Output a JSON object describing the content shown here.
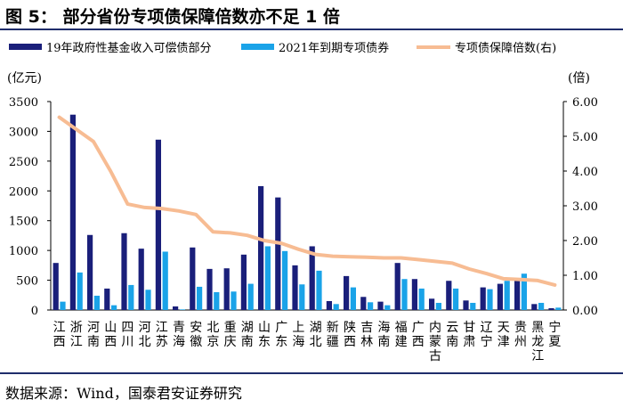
{
  "figure": {
    "title": "图 5： 部分省份专项债保障倍数亦不足 1 倍",
    "source": "数据来源：Wind，国泰君安证券研究"
  },
  "chart_data": {
    "type": "bar",
    "y_left_unit": "(亿元)",
    "y_right_unit": "(倍)",
    "ylim": [
      0,
      3500
    ],
    "yticks": [
      0,
      500,
      1000,
      1500,
      2000,
      2500,
      3000,
      3500
    ],
    "y2lim": [
      0,
      6
    ],
    "y2ticks": [
      "0.00",
      "1.00",
      "2.00",
      "3.00",
      "4.00",
      "5.00",
      "6.00"
    ],
    "categories": [
      "江西",
      "浙江",
      "河南",
      "山西",
      "四川",
      "河北",
      "江苏",
      "青海",
      "安徽",
      "北京",
      "重庆",
      "湖南",
      "山东",
      "广东",
      "上海",
      "湖北",
      "新疆",
      "陕西",
      "吉林",
      "海南",
      "福建",
      "广西",
      "内蒙古",
      "云南",
      "甘肃",
      "辽宁",
      "天津",
      "贵州",
      "黑龙江",
      "宁夏"
    ],
    "series": [
      {
        "name": "19年政府性基金收入可偿债部分",
        "type": "bar",
        "color": "#1a1f7a",
        "axis": "left",
        "values": [
          790,
          3280,
          1260,
          360,
          1290,
          1030,
          2860,
          60,
          1050,
          690,
          700,
          930,
          2080,
          1890,
          750,
          1070,
          150,
          570,
          220,
          140,
          790,
          520,
          190,
          490,
          160,
          380,
          440,
          500,
          100,
          30
        ]
      },
      {
        "name": "2021年到期专项债券",
        "type": "bar",
        "color": "#1aa3e8",
        "axis": "left",
        "values": [
          140,
          630,
          240,
          80,
          420,
          340,
          980,
          10,
          390,
          300,
          310,
          440,
          1070,
          990,
          430,
          660,
          100,
          380,
          130,
          80,
          520,
          360,
          120,
          360,
          120,
          350,
          490,
          610,
          120,
          40
        ]
      },
      {
        "name": "专项债保障倍数(右)",
        "type": "line",
        "color": "#f7bc93",
        "axis": "right",
        "values": [
          5.55,
          5.2,
          4.85,
          4.0,
          3.05,
          2.95,
          2.92,
          2.85,
          2.75,
          2.25,
          2.22,
          2.15,
          2.0,
          1.92,
          1.75,
          1.6,
          1.55,
          1.53,
          1.52,
          1.5,
          1.5,
          1.45,
          1.4,
          1.35,
          1.18,
          1.05,
          0.9,
          0.88,
          0.85,
          0.72
        ]
      }
    ],
    "legend_position": "top",
    "grid": false
  }
}
